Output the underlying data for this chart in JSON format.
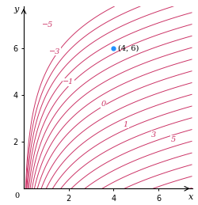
{
  "title": "",
  "xlabel": "x",
  "ylabel": "y",
  "xlim": [
    0,
    7.5
  ],
  "ylim": [
    0,
    7.8
  ],
  "xticks": [
    2,
    4,
    6
  ],
  "yticks": [
    2,
    4,
    6
  ],
  "point": [
    4,
    6
  ],
  "point_label": "(4, 6)",
  "point_color": "#1e90ff",
  "curve_color": "#cc3366",
  "levels": [
    -5,
    -4.5,
    -4,
    -3.5,
    -3,
    -2.5,
    -2,
    -1.5,
    -1,
    -0.5,
    0,
    0.5,
    1,
    1.5,
    2,
    2.5,
    3,
    3.5,
    4,
    4.5,
    5
  ],
  "labeled_levels": [
    -5,
    -3,
    -1,
    0,
    1,
    3,
    5
  ],
  "background_color": "#ffffff",
  "axis_color": "#000000",
  "fontsize_ticks": 7,
  "fontsize_labels": 8,
  "fontsize_point": 7,
  "curve_linewidth": 0.7
}
